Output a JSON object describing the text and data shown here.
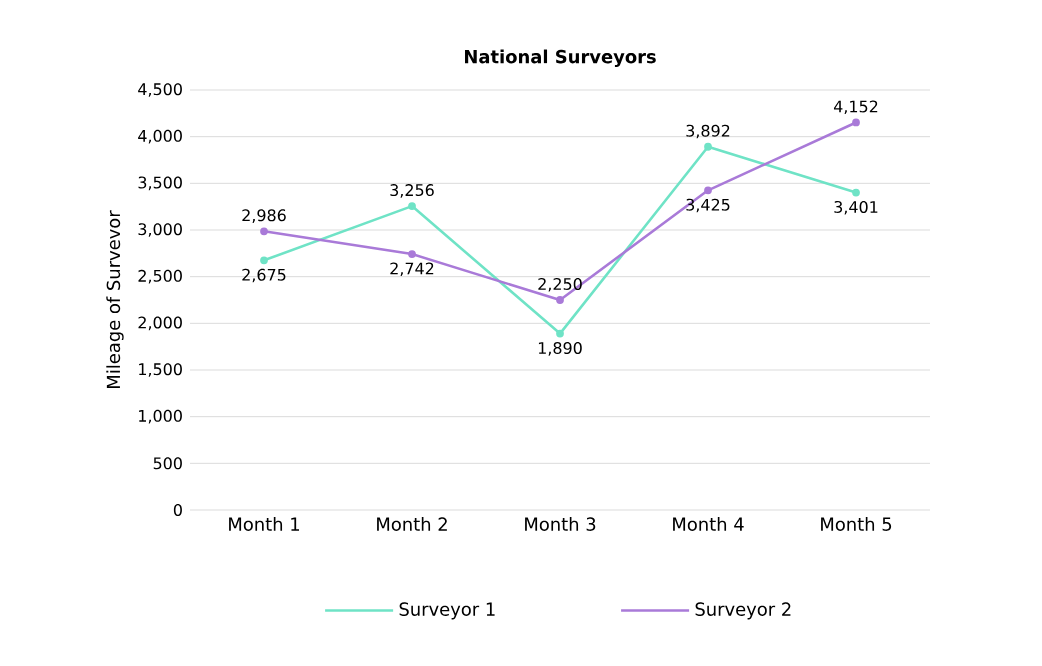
{
  "chart_data": {
    "type": "line",
    "title": "National Surveyors",
    "ylabel": "Mileage of Survevor",
    "categories": [
      "Month 1",
      "Month 2",
      "Month 3",
      "Month 4",
      "Month 5"
    ],
    "series": [
      {
        "name": "Surveyor 1",
        "color": "#6fe3c6",
        "values": [
          2675,
          3256,
          1890,
          3892,
          3401
        ],
        "value_labels": [
          "2,675",
          "3,256",
          "1,890",
          "3,892",
          "3,401"
        ]
      },
      {
        "name": "Surveyor 2",
        "color": "#a97ad8",
        "values": [
          2986,
          2742,
          2250,
          3425,
          4152
        ],
        "value_labels": [
          "2,986",
          "2,742",
          "2,250",
          "3,425",
          "4,152"
        ]
      }
    ],
    "ylim": [
      0,
      4500
    ],
    "yticks": [
      0,
      500,
      {
        "value": 1000,
        "label": "1,000"
      },
      {
        "value": 1500,
        "label": "1,500"
      },
      {
        "value": 2000,
        "label": "2,000"
      },
      {
        "value": 2500,
        "label": "2,500"
      },
      {
        "value": 3000,
        "label": "3,000"
      },
      {
        "value": 3500,
        "label": "3,500"
      },
      {
        "value": 4000,
        "label": "4,000"
      },
      {
        "value": 4500,
        "label": "4,500"
      }
    ],
    "grid": "y",
    "legend": "bottom",
    "marker": "circle",
    "line_style": "solid"
  }
}
